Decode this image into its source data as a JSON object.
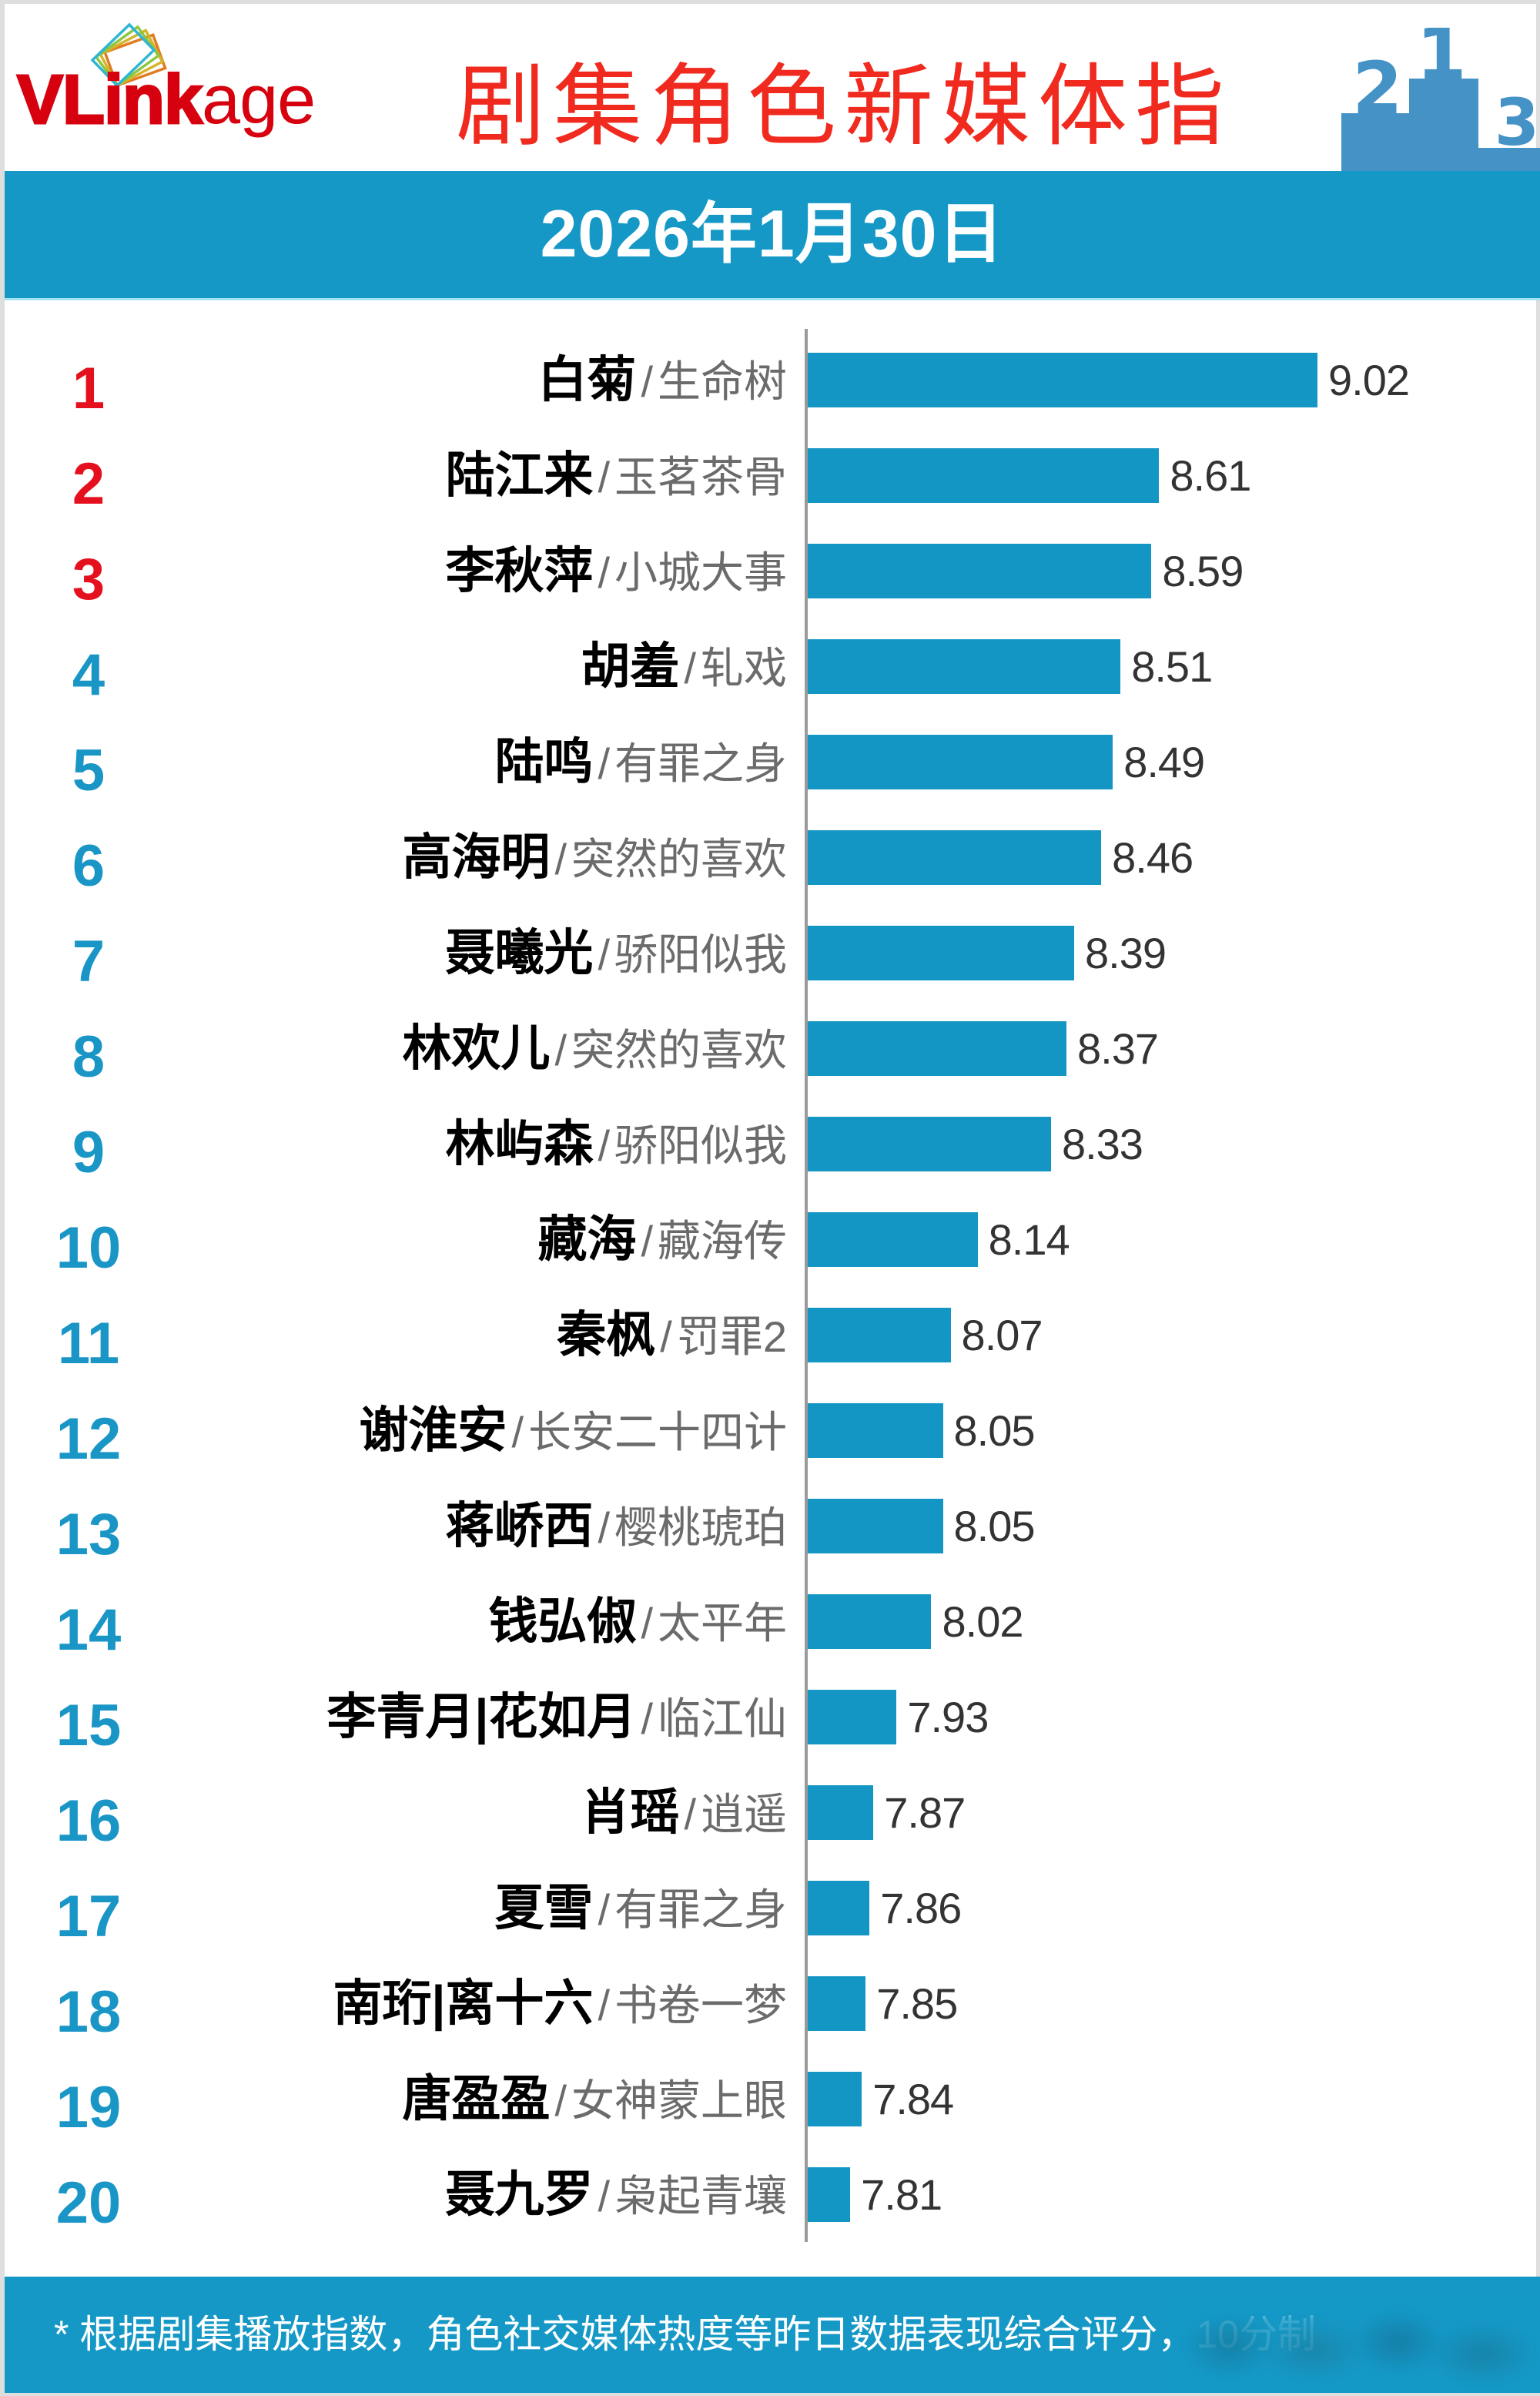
{
  "header": {
    "logo_text_bold": "VLink",
    "logo_text_light": "age",
    "title": "剧集角色新媒体指",
    "podium_labels": [
      "2",
      "1",
      "3"
    ]
  },
  "date_bar": {
    "date": "2026年1月30日"
  },
  "labels": {
    "separator": "/"
  },
  "rankings": [
    {
      "rank": "1",
      "character": "白菊",
      "drama": "生命树",
      "score": "9.02",
      "highlight": true
    },
    {
      "rank": "2",
      "character": "陆江来",
      "drama": "玉茗茶骨",
      "score": "8.61",
      "highlight": true
    },
    {
      "rank": "3",
      "character": "李秋萍",
      "drama": "小城大事",
      "score": "8.59",
      "highlight": true
    },
    {
      "rank": "4",
      "character": "胡羞",
      "drama": "轧戏",
      "score": "8.51",
      "highlight": false
    },
    {
      "rank": "5",
      "character": "陆鸣",
      "drama": "有罪之身",
      "score": "8.49",
      "highlight": false
    },
    {
      "rank": "6",
      "character": "高海明",
      "drama": "突然的喜欢",
      "score": "8.46",
      "highlight": false
    },
    {
      "rank": "7",
      "character": "聂曦光",
      "drama": "骄阳似我",
      "score": "8.39",
      "highlight": false
    },
    {
      "rank": "8",
      "character": "林欢儿",
      "drama": "突然的喜欢",
      "score": "8.37",
      "highlight": false
    },
    {
      "rank": "9",
      "character": "林屿森",
      "drama": "骄阳似我",
      "score": "8.33",
      "highlight": false
    },
    {
      "rank": "10",
      "character": "藏海",
      "drama": "藏海传",
      "score": "8.14",
      "highlight": false
    },
    {
      "rank": "11",
      "character": "秦枫",
      "drama": "罚罪2",
      "score": "8.07",
      "highlight": false
    },
    {
      "rank": "12",
      "character": "谢淮安",
      "drama": "长安二十四计",
      "score": "8.05",
      "highlight": false
    },
    {
      "rank": "13",
      "character": "蒋峤西",
      "drama": "樱桃琥珀",
      "score": "8.05",
      "highlight": false
    },
    {
      "rank": "14",
      "character": "钱弘俶",
      "drama": "太平年",
      "score": "8.02",
      "highlight": false
    },
    {
      "rank": "15",
      "character": "李青月|花如月",
      "drama": "临江仙",
      "score": "7.93",
      "highlight": false
    },
    {
      "rank": "16",
      "character": "肖瑶",
      "drama": "逍遥",
      "score": "7.87",
      "highlight": false
    },
    {
      "rank": "17",
      "character": "夏雪",
      "drama": "有罪之身",
      "score": "7.86",
      "highlight": false
    },
    {
      "rank": "18",
      "character": "南珩|离十六",
      "drama": "书卷一梦",
      "score": "7.85",
      "highlight": false
    },
    {
      "rank": "19",
      "character": "唐盈盈",
      "drama": "女神蒙上眼",
      "score": "7.84",
      "highlight": false
    },
    {
      "rank": "20",
      "character": "聂九罗",
      "drama": "枭起青壤",
      "score": "7.81",
      "highlight": false
    }
  ],
  "footer": {
    "note": "* 根据剧集播放指数，角色社交媒体热度等昨日数据表现综合评分，10分制"
  },
  "colors": {
    "title": "#f02a1f",
    "logo": "#d7000f",
    "band": "#1598c6",
    "bar": "#1496c4",
    "rank_top3": "#e5101e",
    "rank_default": "#1a96c6",
    "axis": "#9a9a9a",
    "podium": "#4593c6",
    "character_text": "#000000",
    "drama_text": "#6b6b6b",
    "value_text": "#333333"
  },
  "chart_data": {
    "type": "bar",
    "orientation": "horizontal",
    "title": "剧集角色新媒体指",
    "subtitle": "2026年1月30日",
    "categories": [
      "白菊 / 生命树",
      "陆江来 / 玉茗茶骨",
      "李秋萍 / 小城大事",
      "胡羞 / 轧戏",
      "陆鸣 / 有罪之身",
      "高海明 / 突然的喜欢",
      "聂曦光 / 骄阳似我",
      "林欢儿 / 突然的喜欢",
      "林屿森 / 骄阳似我",
      "藏海 / 藏海传",
      "秦枫 / 罚罪2",
      "谢淮安 / 长安二十四计",
      "蒋峤西 / 樱桃琥珀",
      "钱弘俶 / 太平年",
      "李青月|花如月 / 临江仙",
      "肖瑶 / 逍遥",
      "夏雪 / 有罪之身",
      "南珩|离十六 / 书卷一梦",
      "唐盈盈 / 女神蒙上眼",
      "聂九罗 / 枭起青壤"
    ],
    "values": [
      9.02,
      8.61,
      8.59,
      8.51,
      8.49,
      8.46,
      8.39,
      8.37,
      8.33,
      8.14,
      8.07,
      8.05,
      8.05,
      8.02,
      7.93,
      7.87,
      7.86,
      7.85,
      7.84,
      7.81
    ],
    "xlabel": "",
    "ylabel": "",
    "xlim": [
      7.7,
      9.02
    ],
    "grid": false,
    "legend": null,
    "data_labels": true,
    "note": "* 根据剧集播放指数，角色社交媒体热度等昨日数据表现综合评分，10分制"
  }
}
